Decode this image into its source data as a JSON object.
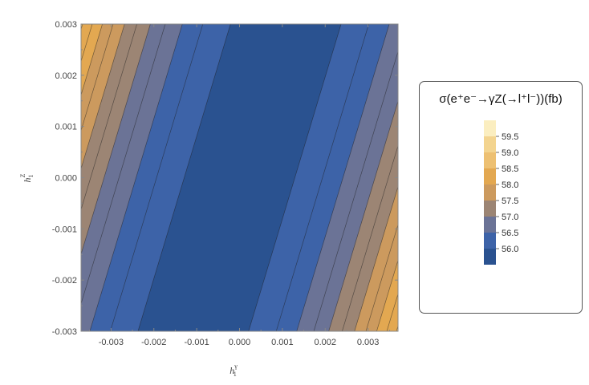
{
  "chart_data": {
    "type": "contour",
    "xlabel": "h",
    "xlabel_sub": "1",
    "xlabel_sup": "γ",
    "ylabel": "h",
    "ylabel_sub": "1",
    "ylabel_sup": "Z",
    "xlim": [
      -0.0037,
      0.0037
    ],
    "ylim": [
      -0.003,
      0.003
    ],
    "x_ticks": [
      -0.003,
      -0.002,
      -0.001,
      0.0,
      0.001,
      0.002,
      0.003
    ],
    "x_tick_labels": [
      "-0.003",
      "-0.002",
      "-0.001",
      "0.000",
      "0.001",
      "0.002",
      "0.003"
    ],
    "y_ticks": [
      -0.003,
      -0.002,
      -0.001,
      0.0,
      0.001,
      0.002,
      0.003
    ],
    "y_tick_labels": [
      "-0.003",
      "-0.002",
      "-0.001",
      "0.000",
      "0.001",
      "0.002",
      "0.003"
    ],
    "legend": {
      "title": "σ(e⁺e⁻→γZ(→l⁺l⁻))(fb)",
      "placement": "right",
      "levels": [
        56.0,
        56.5,
        57.0,
        57.5,
        58.0,
        58.5,
        59.0,
        59.5
      ],
      "level_labels": [
        "56.0",
        "56.5",
        "57.0",
        "57.5",
        "58.0",
        "58.5",
        "59.0",
        "59.5"
      ]
    },
    "contour_model": {
      "description": "sigma = 55.8 + 12e4*u^2, u = h1_gamma - 0.36*h1_Z",
      "sigma_min": 55.8,
      "curvature": 120000,
      "slope": 0.36,
      "minor_contour_step": 0.25
    },
    "band_colors": [
      "#2a5290",
      "#3d63a8",
      "#6b7396",
      "#9c8574",
      "#cc9a5e",
      "#e3a851",
      "#edc072",
      "#f3d48f",
      "#fbeec0"
    ]
  }
}
